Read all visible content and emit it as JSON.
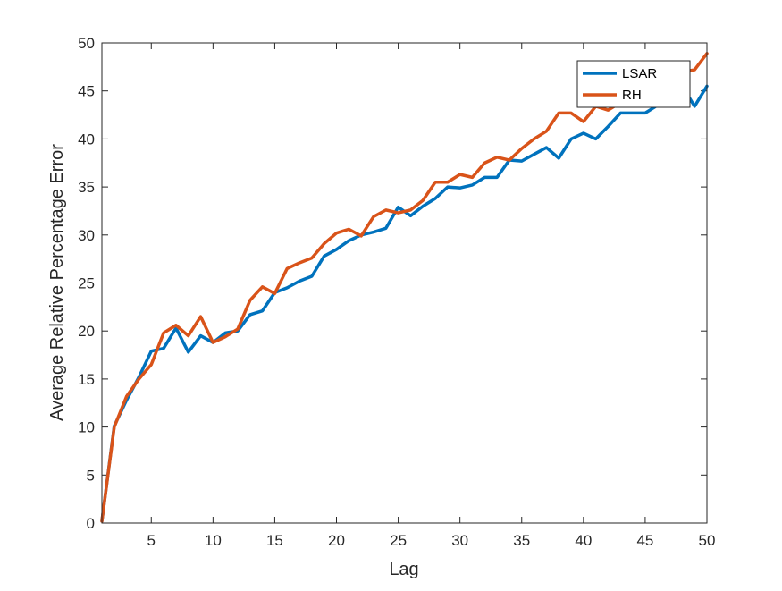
{
  "chart_data": {
    "type": "line",
    "title": "",
    "xlabel": "Lag",
    "ylabel": "Average Relative Percentage Error",
    "xlim": [
      1,
      50
    ],
    "ylim": [
      0,
      50
    ],
    "xticks": [
      5,
      10,
      15,
      20,
      25,
      30,
      35,
      40,
      45,
      50
    ],
    "yticks": [
      0,
      5,
      10,
      15,
      20,
      25,
      30,
      35,
      40,
      45,
      50
    ],
    "grid": false,
    "legend_position": "top-right",
    "x": [
      1,
      2,
      3,
      4,
      5,
      6,
      7,
      8,
      9,
      10,
      11,
      12,
      13,
      14,
      15,
      16,
      17,
      18,
      19,
      20,
      21,
      22,
      23,
      24,
      25,
      26,
      27,
      28,
      29,
      30,
      31,
      32,
      33,
      34,
      35,
      36,
      37,
      38,
      39,
      40,
      41,
      42,
      43,
      44,
      45,
      46,
      47,
      48,
      49,
      50
    ],
    "series": [
      {
        "name": "LSAR",
        "color": "#0072BD",
        "values": [
          0.2,
          10.1,
          12.8,
          15.2,
          17.9,
          18.2,
          20.3,
          17.8,
          19.5,
          18.8,
          19.8,
          20.0,
          21.7,
          22.1,
          24.0,
          24.5,
          25.2,
          25.7,
          27.8,
          28.5,
          29.4,
          30.0,
          30.3,
          30.7,
          32.9,
          32.0,
          33.0,
          33.8,
          35.0,
          34.9,
          35.2,
          36.0,
          36.0,
          37.8,
          37.7,
          38.4,
          39.1,
          38.0,
          40.0,
          40.6,
          40.0,
          41.3,
          42.7,
          42.7,
          42.7,
          43.5,
          44.5,
          45.5,
          43.4,
          45.5
        ]
      },
      {
        "name": "RH",
        "color": "#D95319",
        "values": [
          0.2,
          10.0,
          13.2,
          15.0,
          16.5,
          19.8,
          20.6,
          19.5,
          21.5,
          18.8,
          19.4,
          20.2,
          23.2,
          24.6,
          23.9,
          26.5,
          27.1,
          27.6,
          29.1,
          30.2,
          30.6,
          29.9,
          31.9,
          32.6,
          32.3,
          32.6,
          33.6,
          35.5,
          35.5,
          36.3,
          36.0,
          37.5,
          38.1,
          37.8,
          39.0,
          40.0,
          40.8,
          42.7,
          42.7,
          41.8,
          43.4,
          43.0,
          43.8,
          44.5,
          45.2,
          45.8,
          46.5,
          47.0,
          47.2,
          48.9
        ]
      }
    ]
  }
}
